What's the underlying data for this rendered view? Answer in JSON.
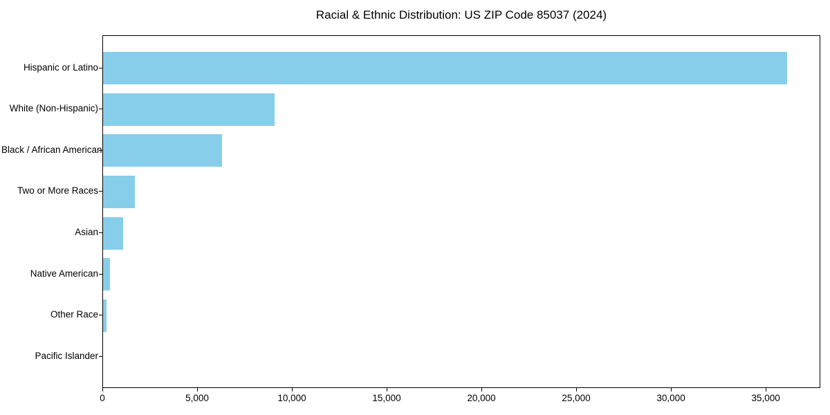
{
  "chart_data": {
    "type": "bar",
    "orientation": "horizontal",
    "title": "Racial & Ethnic Distribution: US ZIP Code 85037 (2024)",
    "categories": [
      "Hispanic or Latino",
      "White (Non-Hispanic)",
      "Black / African American",
      "Two or More Races",
      "Asian",
      "Native American",
      "Other Race",
      "Pacific Islander"
    ],
    "values": [
      36100,
      9050,
      6270,
      1680,
      1060,
      375,
      170,
      0
    ],
    "xlabel": "",
    "ylabel": "",
    "xlim": [
      0,
      37880
    ],
    "x_ticks": [
      0,
      5000,
      10000,
      15000,
      20000,
      25000,
      30000,
      35000
    ],
    "grid": false,
    "legend_position": "none",
    "bar_color": "#87CEEB",
    "axis_color": "#000000",
    "background_color": "#FFFFFF"
  }
}
